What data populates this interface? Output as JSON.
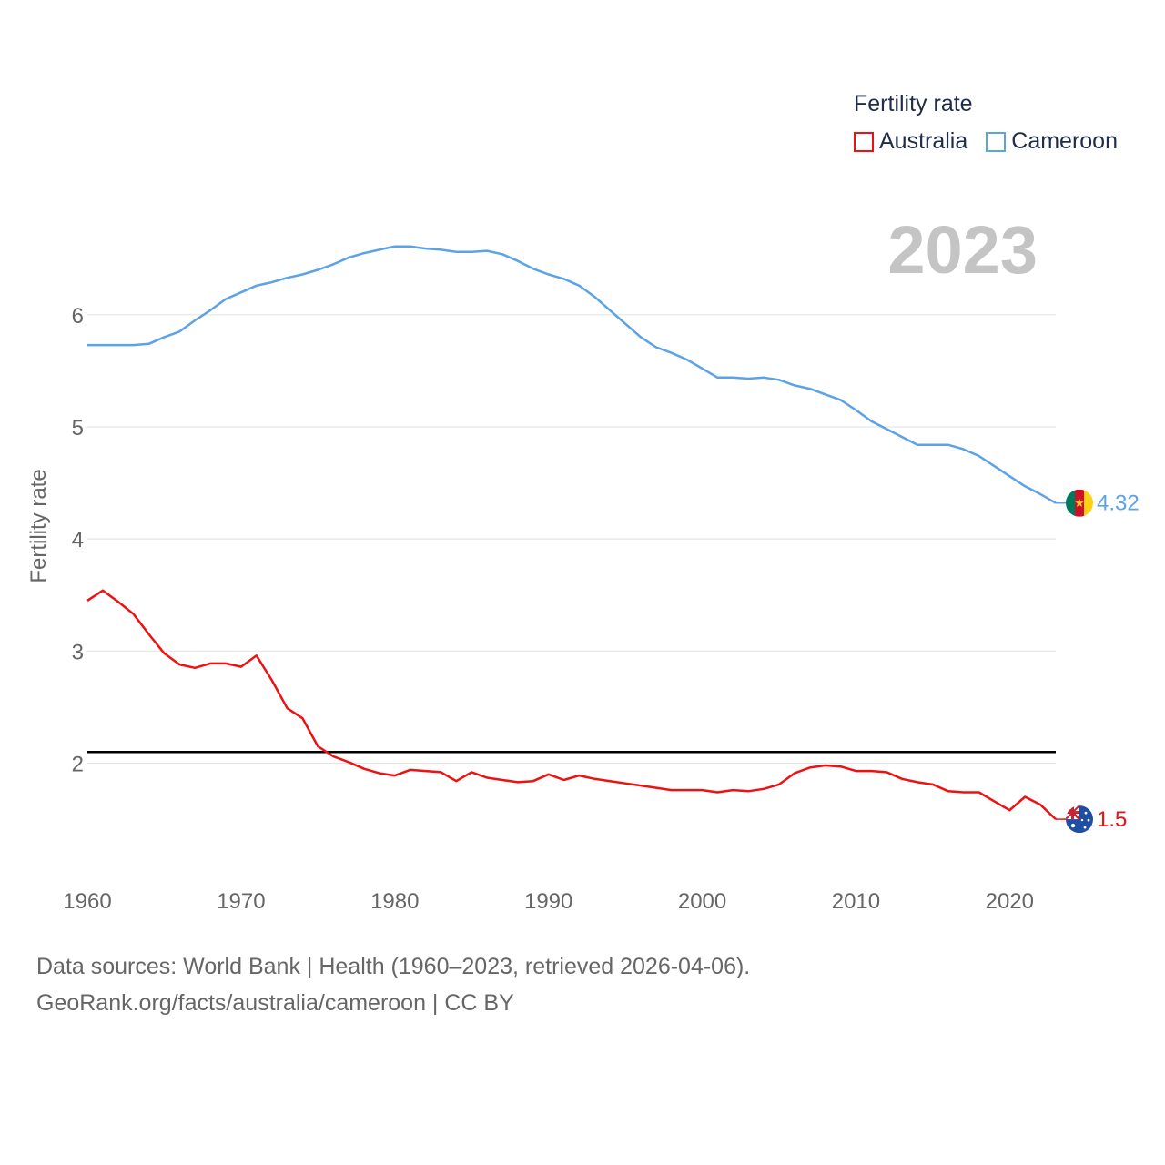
{
  "chart_data": {
    "type": "line",
    "title": "",
    "year_label": "2023",
    "ylabel": "Fertility rate",
    "xlabel": "",
    "xlim": [
      1960,
      2023
    ],
    "ylim": [
      0.9,
      7.2
    ],
    "x_ticks": [
      1960,
      1970,
      1980,
      1990,
      2000,
      2010,
      2020
    ],
    "y_ticks": [
      2,
      3,
      4,
      5,
      6
    ],
    "reference_line": {
      "value": 2.1,
      "color": "#000000"
    },
    "legend": {
      "title": "Fertility rate",
      "placement": "top-right"
    },
    "x": [
      1960,
      1961,
      1962,
      1963,
      1964,
      1965,
      1966,
      1967,
      1968,
      1969,
      1970,
      1971,
      1972,
      1973,
      1974,
      1975,
      1976,
      1977,
      1978,
      1979,
      1980,
      1981,
      1982,
      1983,
      1984,
      1985,
      1986,
      1987,
      1988,
      1989,
      1990,
      1991,
      1992,
      1993,
      1994,
      1995,
      1996,
      1997,
      1998,
      1999,
      2000,
      2001,
      2002,
      2003,
      2004,
      2005,
      2006,
      2007,
      2008,
      2009,
      2010,
      2011,
      2012,
      2013,
      2014,
      2015,
      2016,
      2017,
      2018,
      2019,
      2020,
      2021,
      2022,
      2023
    ],
    "series": [
      {
        "name": "Australia",
        "color": "#ee1111",
        "end_label": "1.5",
        "flag": "australia-flag-icon",
        "values": [
          3.45,
          3.54,
          3.44,
          3.33,
          3.15,
          2.98,
          2.88,
          2.85,
          2.89,
          2.89,
          2.86,
          2.96,
          2.74,
          2.49,
          2.4,
          2.15,
          2.06,
          2.01,
          1.95,
          1.91,
          1.89,
          1.94,
          1.93,
          1.92,
          1.84,
          1.92,
          1.87,
          1.85,
          1.83,
          1.84,
          1.9,
          1.85,
          1.89,
          1.86,
          1.84,
          1.82,
          1.8,
          1.78,
          1.76,
          1.76,
          1.76,
          1.74,
          1.76,
          1.75,
          1.77,
          1.81,
          1.91,
          1.96,
          1.98,
          1.97,
          1.93,
          1.93,
          1.92,
          1.86,
          1.83,
          1.81,
          1.75,
          1.74,
          1.74,
          1.66,
          1.58,
          1.7,
          1.63,
          1.5
        ]
      },
      {
        "name": "Cameroon",
        "color": "#5ba3e6",
        "end_label": "4.32",
        "flag": "cameroon-flag-icon",
        "values": [
          5.73,
          5.73,
          5.73,
          5.73,
          5.74,
          5.8,
          5.85,
          5.95,
          6.04,
          6.14,
          6.2,
          6.26,
          6.29,
          6.33,
          6.36,
          6.4,
          6.45,
          6.51,
          6.55,
          6.58,
          6.61,
          6.61,
          6.59,
          6.58,
          6.56,
          6.56,
          6.57,
          6.54,
          6.48,
          6.41,
          6.36,
          6.32,
          6.26,
          6.16,
          6.04,
          5.92,
          5.8,
          5.71,
          5.66,
          5.6,
          5.52,
          5.44,
          5.44,
          5.43,
          5.44,
          5.42,
          5.37,
          5.34,
          5.29,
          5.24,
          5.15,
          5.05,
          4.98,
          4.91,
          4.84,
          4.84,
          4.84,
          4.8,
          4.74,
          4.65,
          4.56,
          4.47,
          4.4,
          4.32
        ]
      }
    ]
  },
  "footer": {
    "sources": "Data sources: World Bank | Health (1960–2023, retrieved 2026-04-06).",
    "credit": "GeoRank.org/facts/australia/cameroon | CC BY"
  }
}
